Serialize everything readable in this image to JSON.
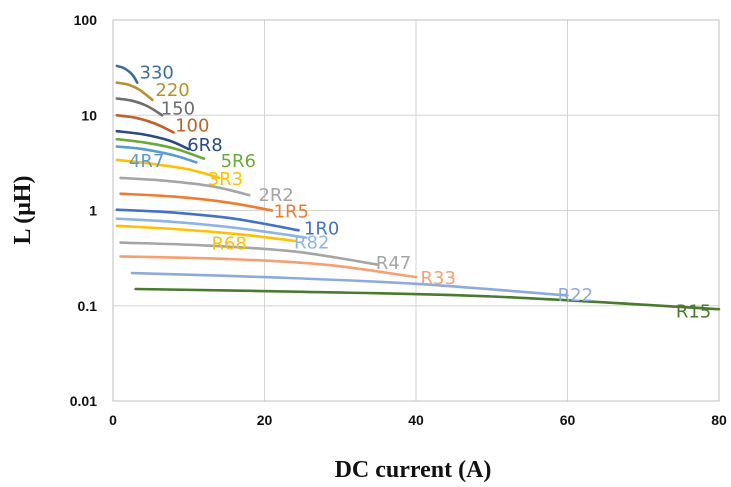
{
  "chart_data": {
    "type": "line",
    "title": "",
    "xlabel": "DC current (A)",
    "ylabel": "L (μH)",
    "xlim": [
      0,
      80
    ],
    "ylim": [
      0.01,
      100
    ],
    "yscale": "log",
    "grid": true,
    "legend": "none",
    "x_ticks": [
      {
        "value": 0,
        "label": "0"
      },
      {
        "value": 20,
        "label": "20"
      },
      {
        "value": 40,
        "label": "40"
      },
      {
        "value": 60,
        "label": "60"
      },
      {
        "value": 80,
        "label": "80"
      }
    ],
    "y_ticks": [
      {
        "value": 0.01,
        "label": "0.01"
      },
      {
        "value": 0.1,
        "label": "0.1"
      },
      {
        "value": 1,
        "label": "1"
      },
      {
        "value": 10,
        "label": "10"
      },
      {
        "value": 100,
        "label": "100"
      }
    ],
    "series": [
      {
        "name": "330",
        "color": "#3c6e9a",
        "x": [
          0.5,
          1.5,
          2.5,
          3.2
        ],
        "y": [
          33,
          31,
          27,
          22
        ]
      },
      {
        "name": "220",
        "color": "#b8902a",
        "x": [
          0.5,
          2,
          3.5,
          5.2
        ],
        "y": [
          22,
          21,
          18.5,
          14.5
        ]
      },
      {
        "name": "150",
        "color": "#6e6e6e",
        "x": [
          0.5,
          2.5,
          4.5,
          6.5
        ],
        "y": [
          15,
          14.2,
          12.5,
          10
        ]
      },
      {
        "name": "100",
        "color": "#c0602a",
        "x": [
          0.5,
          3,
          5.5,
          8
        ],
        "y": [
          10,
          9.4,
          8.2,
          6.6
        ]
      },
      {
        "name": "6R8",
        "color": "#2a4a80",
        "x": [
          0.5,
          4,
          7.5,
          10
        ],
        "y": [
          6.8,
          6.3,
          5.4,
          4.4
        ]
      },
      {
        "name": "5R6",
        "color": "#6aaa3a",
        "x": [
          0.5,
          4,
          8,
          12
        ],
        "y": [
          5.6,
          5.2,
          4.5,
          3.5
        ]
      },
      {
        "name": "4R7",
        "color": "#5a9ad2",
        "x": [
          0.5,
          4,
          8,
          11
        ],
        "y": [
          4.7,
          4.4,
          3.8,
          3.2
        ]
      },
      {
        "name": "3R3",
        "color": "#ffc000",
        "x": [
          0.5,
          5,
          10,
          14
        ],
        "y": [
          3.4,
          3.1,
          2.7,
          2.2
        ]
      },
      {
        "name": "2R2",
        "color": "#a5a5a5",
        "x": [
          1,
          7,
          13,
          18
        ],
        "y": [
          2.2,
          2.05,
          1.8,
          1.45
        ]
      },
      {
        "name": "1R5",
        "color": "#ed7d31",
        "x": [
          1,
          8,
          15,
          21
        ],
        "y": [
          1.5,
          1.4,
          1.22,
          1.0
        ]
      },
      {
        "name": "1R0",
        "color": "#4472c4",
        "x": [
          0.5,
          8,
          16,
          24.5
        ],
        "y": [
          1.02,
          0.95,
          0.82,
          0.62
        ]
      },
      {
        "name": "R82",
        "color": "#8eb4e3",
        "x": [
          0.5,
          8,
          16,
          25.5
        ],
        "y": [
          0.82,
          0.76,
          0.66,
          0.52
        ]
      },
      {
        "name": "R68",
        "color": "#ffc000",
        "x": [
          0.5,
          8,
          16,
          24
        ],
        "y": [
          0.69,
          0.64,
          0.57,
          0.48
        ]
      },
      {
        "name": "R47",
        "color": "#a5a5a5",
        "x": [
          1,
          12,
          24,
          35
        ],
        "y": [
          0.46,
          0.43,
          0.37,
          0.27
        ]
      },
      {
        "name": "R33",
        "color": "#f4a070",
        "x": [
          1,
          15,
          28,
          40
        ],
        "y": [
          0.33,
          0.31,
          0.27,
          0.2
        ]
      },
      {
        "name": "R22",
        "color": "#8eaadb",
        "x": [
          2.5,
          20,
          40,
          60
        ],
        "y": [
          0.22,
          0.2,
          0.17,
          0.128
        ]
      },
      {
        "name": "R15",
        "color": "#4a7a2e",
        "x": [
          3,
          25,
          50,
          80
        ],
        "y": [
          0.15,
          0.14,
          0.125,
          0.092
        ]
      }
    ],
    "labels": [
      {
        "series": "330",
        "text": "330",
        "x": 3.5,
        "y": 28
      },
      {
        "series": "220",
        "text": "220",
        "x": 5.6,
        "y": 18.5
      },
      {
        "series": "150",
        "text": "150",
        "x": 6.3,
        "y": 11.8
      },
      {
        "series": "100",
        "text": "100",
        "x": 8.2,
        "y": 7.8
      },
      {
        "series": "6R8",
        "text": "6R8",
        "x": 9.8,
        "y": 4.9
      },
      {
        "series": "5R6",
        "text": "5R6",
        "x": 14.2,
        "y": 3.3
      },
      {
        "series": "4R7",
        "text": "4R7",
        "x": 2.1,
        "y": 3.3
      },
      {
        "series": "3R3",
        "text": "3R3",
        "x": 12.5,
        "y": 2.15
      },
      {
        "series": "2R2",
        "text": "2R2",
        "x": 19.2,
        "y": 1.45
      },
      {
        "series": "1R5",
        "text": "1R5",
        "x": 21.2,
        "y": 0.98
      },
      {
        "series": "1R0",
        "text": "1R0",
        "x": 25.2,
        "y": 0.65
      },
      {
        "series": "R82",
        "text": "R82",
        "x": 23.9,
        "y": 0.46
      },
      {
        "series": "R68",
        "text": "R68",
        "x": 13,
        "y": 0.45
      },
      {
        "series": "R47",
        "text": "R47",
        "x": 34.7,
        "y": 0.28
      },
      {
        "series": "R33",
        "text": "R33",
        "x": 40.6,
        "y": 0.195
      },
      {
        "series": "R22",
        "text": "R22",
        "x": 58.7,
        "y": 0.13
      },
      {
        "series": "R15",
        "text": "R15",
        "x": 74.3,
        "y": 0.087
      }
    ]
  }
}
